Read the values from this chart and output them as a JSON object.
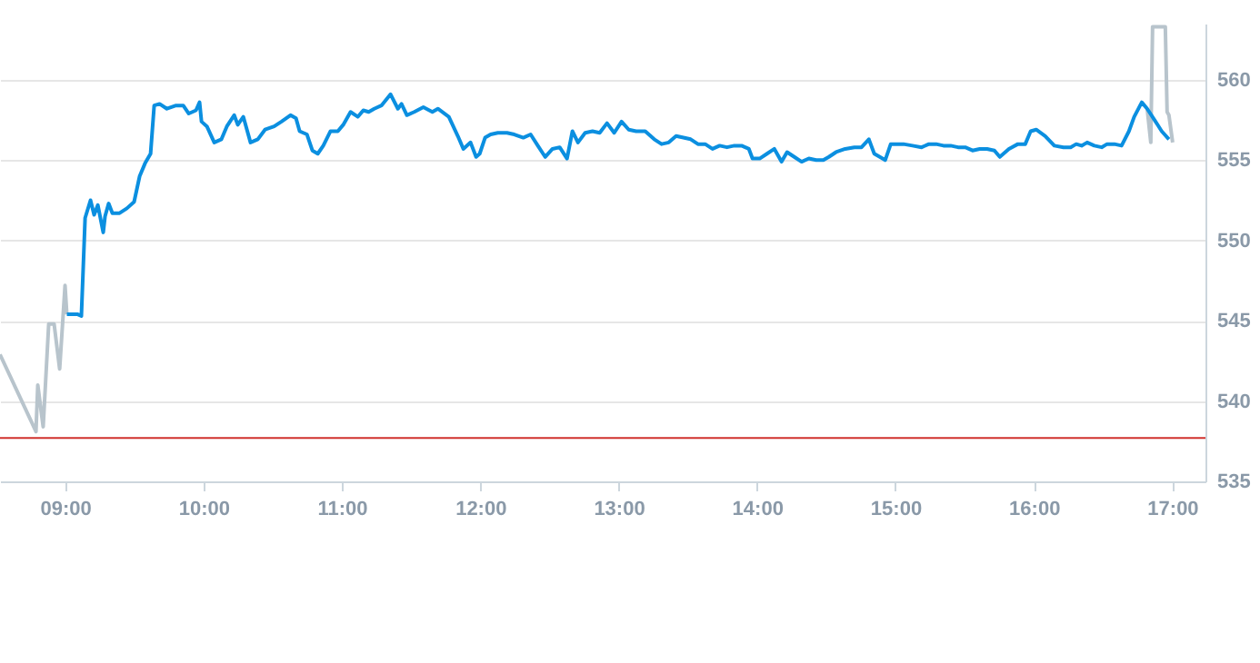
{
  "chart_data": {
    "type": "line",
    "xlim": [
      8.53,
      17.24
    ],
    "ylim": [
      535,
      563.5
    ],
    "xticks": [
      {
        "value": 9,
        "label": "09:00"
      },
      {
        "value": 10,
        "label": "10:00"
      },
      {
        "value": 11,
        "label": "11:00"
      },
      {
        "value": 12,
        "label": "12:00"
      },
      {
        "value": 13,
        "label": "13:00"
      },
      {
        "value": 14,
        "label": "14:00"
      },
      {
        "value": 15,
        "label": "15:00"
      },
      {
        "value": 16,
        "label": "16:00"
      },
      {
        "value": 17,
        "label": "17:00"
      }
    ],
    "yticks": [
      535,
      540,
      545,
      550,
      555,
      560
    ],
    "grid": "y",
    "tick_labels": "xy",
    "line_style": "solid",
    "marker": "none",
    "series": [
      {
        "color": "#b8c4cc",
        "x": [
          8.53,
          8.79,
          8.803,
          8.842,
          8.882,
          8.921,
          8.961,
          9.0,
          9.013
        ],
        "values": [
          542.9,
          538.1,
          541.0,
          538.4,
          544.8,
          544.8,
          542.0,
          547.2,
          545.4
        ]
      },
      {
        "color": "#b8c4cc",
        "x": [
          16.819,
          16.845,
          16.858,
          16.95,
          16.963,
          16.976,
          17.003
        ],
        "values": [
          558.2,
          556.1,
          563.3,
          563.3,
          558.0,
          557.8,
          556.1
        ]
      },
      {
        "color": "#0b8fe0",
        "x": [
          9.013,
          9.092,
          9.118,
          9.145,
          9.184,
          9.21,
          9.237,
          9.276,
          9.289,
          9.315,
          9.342,
          9.394,
          9.447,
          9.499,
          9.539,
          9.578,
          9.618,
          9.644,
          9.683,
          9.736,
          9.802,
          9.854,
          9.894,
          9.946,
          9.972,
          9.986,
          10.025,
          10.078,
          10.13,
          10.169,
          10.222,
          10.248,
          10.288,
          10.34,
          10.393,
          10.445,
          10.511,
          10.564,
          10.629,
          10.669,
          10.695,
          10.748,
          10.787,
          10.826,
          10.866,
          10.918,
          10.971,
          11.01,
          11.063,
          11.116,
          11.155,
          11.194,
          11.234,
          11.286,
          11.352,
          11.405,
          11.431,
          11.47,
          11.523,
          11.589,
          11.654,
          11.694,
          11.773,
          11.838,
          11.878,
          11.93,
          11.97,
          11.996,
          12.035,
          12.075,
          12.127,
          12.193,
          12.246,
          12.311,
          12.364,
          12.416,
          12.469,
          12.522,
          12.574,
          12.627,
          12.666,
          12.706,
          12.758,
          12.811,
          12.863,
          12.916,
          12.968,
          13.021,
          13.073,
          13.126,
          13.192,
          13.257,
          13.31,
          13.362,
          13.415,
          13.468,
          13.52,
          13.573,
          13.625,
          13.678,
          13.73,
          13.783,
          13.836,
          13.888,
          13.941,
          13.967,
          14.019,
          14.072,
          14.125,
          14.177,
          14.217,
          14.269,
          14.322,
          14.374,
          14.427,
          14.479,
          14.519,
          14.571,
          14.637,
          14.703,
          14.755,
          14.808,
          14.847,
          14.887,
          14.926,
          14.966,
          15.005,
          15.058,
          15.123,
          15.189,
          15.242,
          15.294,
          15.347,
          15.399,
          15.452,
          15.504,
          15.557,
          15.609,
          15.662,
          15.715,
          15.754,
          15.82,
          15.885,
          15.938,
          15.977,
          16.017,
          16.082,
          16.148,
          16.214,
          16.266,
          16.306,
          16.345,
          16.385,
          16.437,
          16.49,
          16.529,
          16.582,
          16.634,
          16.687,
          16.725,
          16.78,
          16.819,
          16.872,
          16.924,
          16.976
        ],
        "values": [
          545.4,
          545.4,
          545.3,
          551.4,
          552.5,
          551.6,
          552.2,
          550.5,
          551.5,
          552.3,
          551.7,
          551.7,
          552.0,
          552.4,
          554.0,
          554.8,
          555.4,
          558.4,
          558.5,
          558.2,
          558.4,
          558.4,
          557.9,
          558.1,
          558.6,
          557.4,
          557.1,
          556.1,
          556.3,
          557.1,
          557.8,
          557.2,
          557.7,
          556.1,
          556.3,
          556.9,
          557.1,
          557.4,
          557.8,
          557.6,
          556.8,
          556.6,
          555.6,
          555.4,
          555.9,
          556.8,
          556.8,
          557.2,
          558.0,
          557.7,
          558.1,
          558.0,
          558.2,
          558.4,
          559.1,
          558.2,
          558.5,
          557.8,
          558.0,
          558.3,
          558.0,
          558.2,
          557.7,
          556.5,
          555.7,
          556.1,
          555.2,
          555.4,
          556.4,
          556.6,
          556.7,
          556.7,
          556.6,
          556.4,
          556.6,
          555.9,
          555.2,
          555.7,
          555.8,
          555.1,
          556.8,
          556.1,
          556.7,
          556.8,
          556.7,
          557.3,
          556.7,
          557.4,
          556.9,
          556.8,
          556.8,
          556.3,
          556.0,
          556.1,
          556.5,
          556.4,
          556.3,
          556.0,
          556.0,
          555.7,
          555.9,
          555.8,
          555.9,
          555.9,
          555.7,
          555.1,
          555.1,
          555.4,
          555.7,
          554.9,
          555.5,
          555.2,
          554.9,
          555.1,
          555.0,
          555.0,
          555.2,
          555.5,
          555.7,
          555.8,
          555.8,
          556.3,
          555.4,
          555.2,
          555.0,
          556.0,
          556.0,
          556.0,
          555.9,
          555.8,
          556.0,
          556.0,
          555.9,
          555.9,
          555.8,
          555.8,
          555.6,
          555.7,
          555.7,
          555.6,
          555.2,
          555.7,
          556.0,
          556.0,
          556.8,
          556.9,
          556.5,
          555.9,
          555.8,
          555.8,
          556.0,
          555.9,
          556.1,
          555.9,
          555.8,
          556.0,
          556.0,
          555.9,
          556.8,
          557.7,
          558.6,
          558.2,
          557.5,
          556.8,
          556.3
        ]
      }
    ],
    "ref_lines": [
      {
        "axis": "y",
        "value": 537.7,
        "color": "#d0312d",
        "line_style": "solid"
      }
    ]
  }
}
